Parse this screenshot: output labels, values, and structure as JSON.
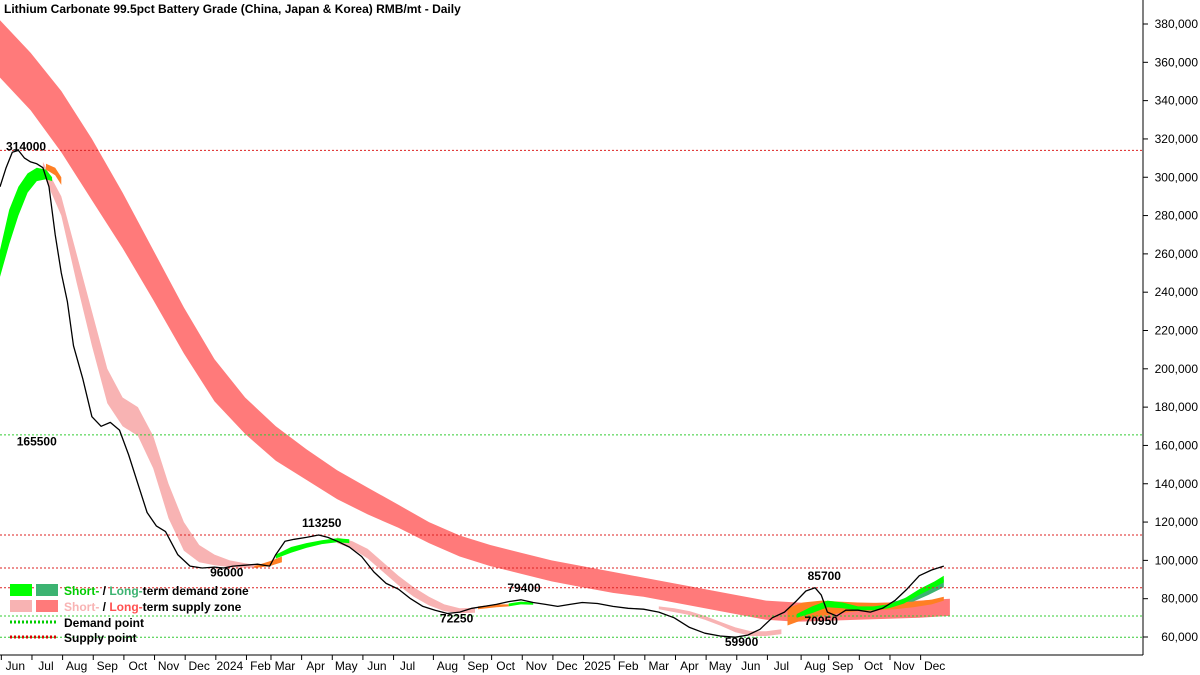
{
  "chart_data": {
    "type": "line",
    "title": "Lithium Carbonate 99.5pct Battery Grade (China, Japan & Korea) RMB/mt - Daily",
    "ylim": [
      50000,
      390000
    ],
    "yticks": [
      60000,
      80000,
      100000,
      120000,
      140000,
      160000,
      180000,
      200000,
      220000,
      240000,
      260000,
      280000,
      300000,
      320000,
      340000,
      360000,
      380000
    ],
    "ytick_labels": [
      "60,000",
      "80,000",
      "100,000",
      "120,000",
      "140,000",
      "160,000",
      "180,000",
      "200,000",
      "220,000",
      "240,000",
      "260,000",
      "280,000",
      "300,000",
      "320,000",
      "340,000",
      "360,000",
      "380,000"
    ],
    "x_range": [
      0,
      38
    ],
    "x_axis_unit": "months since start of June 2023",
    "xticks": [
      {
        "label": "Jun",
        "x": 0.5
      },
      {
        "label": "Jul",
        "x": 1.5
      },
      {
        "label": "Aug",
        "x": 2.5
      },
      {
        "label": "Sep",
        "x": 3.5
      },
      {
        "label": "Oct",
        "x": 4.5
      },
      {
        "label": "Nov",
        "x": 5.5
      },
      {
        "label": "Dec",
        "x": 6.5
      },
      {
        "label": "2024",
        "x": 7.5
      },
      {
        "label": "Feb",
        "x": 8.5
      },
      {
        "label": "Mar",
        "x": 9.3
      },
      {
        "label": "Apr",
        "x": 10.3
      },
      {
        "label": "May",
        "x": 11.3
      },
      {
        "label": "Jun",
        "x": 12.3
      },
      {
        "label": "Jul",
        "x": 13.3
      },
      {
        "label": "Aug",
        "x": 14.6
      },
      {
        "label": "Sep",
        "x": 15.6
      },
      {
        "label": "Oct",
        "x": 16.5
      },
      {
        "label": "Nov",
        "x": 17.5
      },
      {
        "label": "Dec",
        "x": 18.5
      },
      {
        "label": "2025",
        "x": 19.5
      },
      {
        "label": "Feb",
        "x": 20.5
      },
      {
        "label": "Mar",
        "x": 21.5
      },
      {
        "label": "Apr",
        "x": 22.5
      },
      {
        "label": "May",
        "x": 23.5
      },
      {
        "label": "Jun",
        "x": 24.5
      },
      {
        "label": "Jul",
        "x": 25.5
      },
      {
        "label": "Aug",
        "x": 26.6
      },
      {
        "label": "Sep",
        "x": 27.5
      },
      {
        "label": "Oct",
        "x": 28.5
      },
      {
        "label": "Nov",
        "x": 29.5
      },
      {
        "label": "Dec",
        "x": 30.5
      }
    ],
    "price": {
      "name": "Price",
      "x": [
        0,
        0.2,
        0.4,
        0.6,
        0.8,
        1.0,
        1.2,
        1.4,
        1.6,
        1.8,
        2.0,
        2.2,
        2.4,
        2.7,
        3.0,
        3.3,
        3.6,
        3.9,
        4.2,
        4.5,
        4.8,
        5.1,
        5.4,
        5.8,
        6.2,
        6.6,
        7.0,
        7.3,
        7.6,
        8.0,
        8.4,
        8.8,
        9.0,
        9.3,
        9.6,
        10.0,
        10.4,
        10.7,
        11.0,
        11.4,
        11.8,
        12.2,
        12.6,
        13.0,
        13.4,
        13.8,
        14.2,
        14.6,
        15.0,
        15.4,
        15.8,
        16.2,
        16.6,
        17.0,
        17.4,
        17.8,
        18.2,
        18.6,
        19.0,
        19.5,
        20.0,
        20.5,
        21.0,
        21.5,
        22.0,
        22.5,
        23.0,
        23.5,
        24.0,
        24.4,
        24.8,
        25.2,
        25.6,
        26.0,
        26.3,
        26.6,
        26.8,
        27.0,
        27.3,
        27.6,
        28.0,
        28.4,
        28.8,
        29.2,
        29.6,
        30.0,
        30.4,
        30.8
      ],
      "y": [
        295000,
        305000,
        313000,
        314000,
        310000,
        308000,
        307000,
        305000,
        295000,
        270000,
        250000,
        235000,
        212000,
        195000,
        175000,
        170000,
        172000,
        168000,
        155000,
        140000,
        125000,
        118000,
        115000,
        103000,
        97000,
        96000,
        96500,
        96000,
        97000,
        97500,
        98000,
        97000,
        103000,
        110000,
        111000,
        112000,
        113250,
        112000,
        110000,
        107000,
        102000,
        94000,
        88000,
        85000,
        80000,
        76000,
        74000,
        72250,
        73000,
        75000,
        76000,
        77000,
        78500,
        79400,
        78000,
        77000,
        76000,
        77000,
        78000,
        77500,
        76000,
        75000,
        74500,
        73000,
        70000,
        65000,
        62000,
        60500,
        59900,
        61000,
        64000,
        70000,
        73000,
        79000,
        84000,
        85700,
        82000,
        73000,
        70950,
        74000,
        74000,
        73000,
        75000,
        79000,
        85000,
        92000,
        95000,
        97000
      ],
      "color": "#000000"
    },
    "demand_points": [
      {
        "label": "165500",
        "value": 165500
      },
      {
        "label": "96000",
        "value": 96000
      },
      {
        "label": "70950",
        "value": 70950
      },
      {
        "label": "59900",
        "value": 59900
      }
    ],
    "supply_points": [
      {
        "label": "314000",
        "value": 314000
      },
      {
        "label": "113250",
        "value": 113250
      },
      {
        "label": "85700",
        "value": 85700
      }
    ],
    "extra_supply_levels": [
      96000
    ],
    "annotations": [
      {
        "text": "314000",
        "x": 0.85,
        "y": 314000
      },
      {
        "text": "165500",
        "x": 1.2,
        "y": 160000
      },
      {
        "text": "96000",
        "x": 7.4,
        "y": 91500
      },
      {
        "text": "113250",
        "x": 10.5,
        "y": 117500
      },
      {
        "text": "72250",
        "x": 14.9,
        "y": 67500
      },
      {
        "text": "79400",
        "x": 17.1,
        "y": 83500
      },
      {
        "text": "59900",
        "x": 24.2,
        "y": 55200
      },
      {
        "text": "85700",
        "x": 26.9,
        "y": 89800
      },
      {
        "text": "70950",
        "x": 26.8,
        "y": 66200
      }
    ],
    "zones": {
      "long_term_supply": {
        "color": "#ff7a7a",
        "x": [
          0,
          1,
          2,
          3,
          4,
          5,
          6,
          7,
          8,
          9,
          10,
          11,
          12,
          13,
          14,
          15,
          16,
          17,
          18,
          19,
          20,
          21,
          22,
          23,
          24,
          25,
          26,
          27,
          28,
          29,
          30,
          31
        ],
        "upper": [
          382000,
          365000,
          345000,
          320000,
          292000,
          262000,
          232000,
          205000,
          185000,
          170000,
          158000,
          147000,
          138000,
          129000,
          120000,
          113000,
          108000,
          104000,
          100000,
          97000,
          94000,
          91000,
          88000,
          85000,
          82000,
          79000,
          78000,
          77500,
          77500,
          78000,
          79000,
          80000
        ],
        "lower": [
          352000,
          335000,
          313000,
          288000,
          263000,
          236000,
          208000,
          183000,
          166000,
          152000,
          142000,
          132000,
          124000,
          117000,
          109000,
          102000,
          97000,
          93000,
          89000,
          86000,
          83000,
          81000,
          78000,
          75000,
          72000,
          69000,
          68000,
          68500,
          69000,
          69500,
          70000,
          71000
        ]
      },
      "short_term_supply_1": {
        "color": "#f8b3b3",
        "x": [
          1.4,
          2.0,
          2.5,
          3.0,
          3.5,
          4.0,
          4.5,
          5.0,
          5.5,
          6.0,
          6.5,
          7.0,
          7.5,
          8.0,
          8.4
        ],
        "upper": [
          308000,
          290000,
          260000,
          230000,
          200000,
          185000,
          180000,
          165000,
          140000,
          120000,
          108000,
          103000,
          100000,
          98500,
          97500
        ],
        "lower": [
          302000,
          280000,
          245000,
          212000,
          182000,
          170000,
          165000,
          148000,
          122000,
          105000,
          99000,
          97500,
          96500,
          96200,
          96200
        ]
      },
      "short_term_supply_2": {
        "color": "#f8b3b3",
        "x": [
          11.0,
          11.5,
          12.0,
          12.5,
          13.0,
          13.5,
          14.0,
          14.5,
          15.0,
          15.5
        ],
        "upper": [
          112000,
          110000,
          106000,
          99000,
          92000,
          86000,
          81000,
          77000,
          75000,
          75200
        ],
        "lower": [
          109000,
          106000,
          101000,
          94000,
          87000,
          81000,
          76500,
          73500,
          72500,
          72700
        ]
      },
      "short_term_supply_3": {
        "color": "#f8b3b3",
        "x": [
          21.5,
          22.0,
          22.5,
          23.0,
          23.5,
          24.0,
          24.5,
          25.0,
          25.5
        ],
        "upper": [
          76000,
          75000,
          73500,
          71000,
          68000,
          65000,
          63000,
          63000,
          64000
        ],
        "lower": [
          74500,
          73000,
          71500,
          69000,
          66000,
          62500,
          60500,
          60500,
          61500
        ]
      },
      "long_term_demand": {
        "color": "#3cb371",
        "x": [
          27.3,
          27.8,
          28.3,
          28.8,
          29.3,
          29.8,
          30.3,
          30.8
        ],
        "upper": [
          75000,
          75500,
          76000,
          77000,
          79000,
          82000,
          86000,
          90000
        ],
        "lower": [
          73000,
          73500,
          74000,
          74500,
          76000,
          78500,
          82000,
          86000
        ]
      },
      "short_term_demand_1": {
        "color": "#00ff00",
        "x": [
          0,
          0.3,
          0.6,
          0.9,
          1.2,
          1.5,
          1.7
        ],
        "upper": [
          262000,
          283000,
          295000,
          302000,
          305000,
          304000,
          300000
        ],
        "lower": [
          248000,
          265000,
          280000,
          292000,
          298000,
          299000,
          298000
        ]
      },
      "short_term_demand_2": {
        "color": "#00ff00",
        "x": [
          9.0,
          9.5,
          10.0,
          10.5,
          11.0,
          11.4
        ],
        "upper": [
          103000,
          107000,
          109000,
          110500,
          111500,
          111000
        ],
        "lower": [
          101000,
          104000,
          106500,
          108500,
          109500,
          109000
        ]
      },
      "short_term_demand_3": {
        "color": "#00ff00",
        "x": [
          16.6,
          17.0,
          17.4
        ],
        "upper": [
          77500,
          78500,
          78000
        ],
        "lower": [
          76000,
          77000,
          76800
        ]
      },
      "short_term_demand_4": {
        "color": "#00ff00",
        "x": [
          26.0,
          26.5,
          27.0,
          27.5,
          28.0,
          28.5,
          29.0,
          29.5,
          30.0,
          30.5,
          30.8
        ],
        "upper": [
          72000,
          76000,
          79000,
          78000,
          76000,
          76000,
          77000,
          80000,
          85000,
          89000,
          92000
        ],
        "lower": [
          70000,
          72500,
          75500,
          75000,
          74000,
          74000,
          75000,
          77500,
          82000,
          86000,
          88500
        ]
      },
      "orange_1": {
        "color": "#ff7f24",
        "x": [
          1.5,
          1.8,
          2.0
        ],
        "upper": [
          307000,
          305000,
          300000
        ],
        "lower": [
          304000,
          301000,
          296000
        ]
      },
      "orange_2": {
        "color": "#ff7f24",
        "x": [
          8.3,
          8.8,
          9.2
        ],
        "upper": [
          97000,
          99500,
          102000
        ],
        "lower": [
          96000,
          97000,
          99000
        ]
      },
      "orange_3": {
        "color": "#ff7f24",
        "x": [
          15.6,
          16.2,
          16.6
        ],
        "upper": [
          76000,
          77000,
          77000
        ],
        "lower": [
          74500,
          75500,
          76000
        ]
      },
      "orange_4": {
        "color": "#ff7f24",
        "x": [
          25.7,
          26.2,
          26.8,
          27.4,
          28.0,
          28.6,
          29.2,
          29.8,
          30.4,
          30.8
        ],
        "upper": [
          75000,
          78000,
          79000,
          78500,
          78000,
          77800,
          78000,
          78500,
          79500,
          81000
        ],
        "lower": [
          66000,
          69000,
          71000,
          72500,
          73500,
          74000,
          74500,
          75500,
          77000,
          79000
        ]
      }
    }
  },
  "legend": {
    "row1": {
      "short": "Short-",
      "sep": " / ",
      "long": "Long-",
      "rest": "term demand zone"
    },
    "row2": {
      "short": "Short-",
      "sep": " / ",
      "long": "Long-",
      "rest": "term supply zone"
    },
    "row3": "Demand point",
    "row4": "Supply point",
    "colors": {
      "short_demand": "#00ff00",
      "long_demand": "#3cb371",
      "short_supply": "#f8b3b3",
      "long_supply": "#ff7a7a",
      "demand_point": "#00cc00",
      "supply_point": "#dd0000"
    }
  }
}
